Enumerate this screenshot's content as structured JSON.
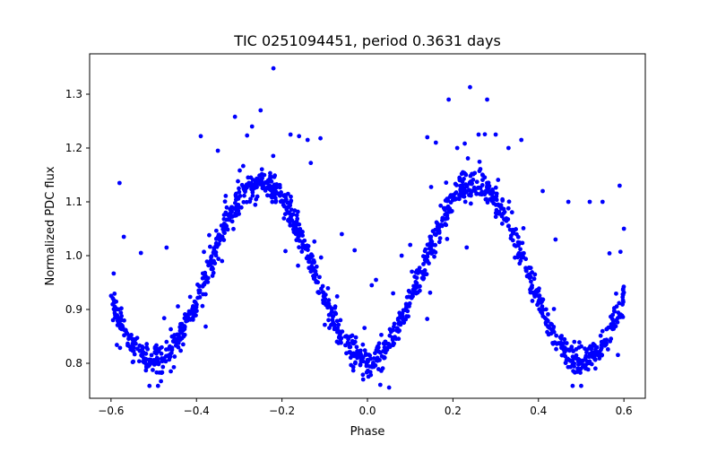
{
  "chart_data": {
    "type": "scatter",
    "title": "TIC 0251094451, period 0.3631 days",
    "xlabel": "Phase",
    "ylabel": "Normalized PDC flux",
    "xlim": [
      -0.65,
      0.65
    ],
    "ylim": [
      0.735,
      1.375
    ],
    "x_ticks": [
      -0.6,
      -0.4,
      -0.2,
      0.0,
      0.2,
      0.4,
      0.6
    ],
    "x_tick_labels": [
      "−0.6",
      "−0.4",
      "−0.2",
      "0.0",
      "0.2",
      "0.4",
      "0.6"
    ],
    "y_ticks": [
      0.8,
      0.9,
      1.0,
      1.1,
      1.2,
      1.3
    ],
    "y_tick_labels": [
      "0.8",
      "0.9",
      "1.0",
      "1.1",
      "1.2",
      "1.3"
    ],
    "grid": false,
    "legend": "none",
    "marker_color": "#0000ff",
    "model": {
      "description_of_trend": "double-humped light curve",
      "mean_flux": 0.97,
      "amplitude": 0.165,
      "minima_phase": [
        -0.5,
        0.0,
        0.5
      ],
      "maxima_phase": [
        -0.25,
        0.25
      ],
      "phase_range": [
        -0.6,
        0.6
      ],
      "approx_point_count": 1400
    },
    "series": [
      {
        "x": [
          -0.58,
          -0.39,
          -0.35,
          -0.31,
          -0.27,
          -0.25,
          -0.22,
          -0.18,
          -0.16,
          -0.14,
          -0.11,
          -0.06,
          -0.03,
          -0.57,
          -0.53,
          -0.47,
          0.01,
          0.02,
          0.06,
          0.08,
          0.1,
          0.14,
          0.16,
          0.19,
          0.21,
          0.24,
          0.26,
          0.28,
          0.3,
          0.33,
          0.36,
          0.41,
          0.44,
          0.47,
          0.52,
          0.55,
          0.59,
          0.6,
          0.48,
          0.5,
          -0.51,
          -0.49,
          0.03,
          -0.01
        ],
        "y": [
          1.135,
          1.222,
          1.195,
          1.258,
          1.24,
          1.27,
          1.348,
          1.225,
          1.222,
          1.215,
          1.218,
          1.04,
          1.01,
          1.035,
          1.005,
          1.015,
          0.945,
          0.955,
          0.93,
          1.0,
          1.02,
          1.22,
          1.21,
          1.29,
          1.2,
          1.313,
          1.225,
          1.29,
          1.225,
          1.2,
          1.215,
          1.12,
          1.03,
          1.1,
          1.1,
          1.1,
          1.13,
          1.05,
          0.758,
          0.758,
          0.758,
          0.758,
          0.76,
          0.77
        ]
      }
    ]
  }
}
